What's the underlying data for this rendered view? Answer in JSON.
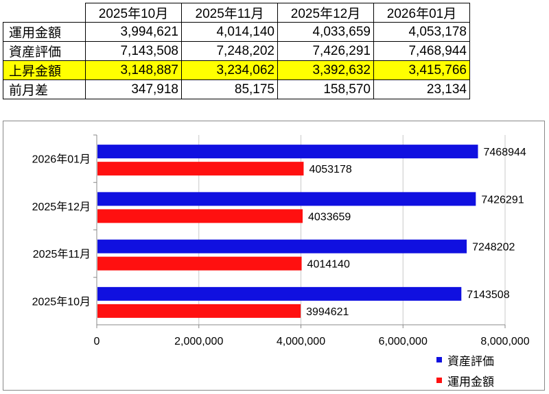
{
  "table": {
    "headers": [
      "2025年10月",
      "2025年11月",
      "2025年12月",
      "2026年01月"
    ],
    "rows": [
      {
        "label": "運用金額",
        "values": [
          "3,994,621",
          "4,014,140",
          "4,033,659",
          "4,053,178"
        ],
        "highlight": false
      },
      {
        "label": "資産評価",
        "values": [
          "7,143,508",
          "7,248,202",
          "7,426,291",
          "7,468,944"
        ],
        "highlight": false
      },
      {
        "label": "上昇金額",
        "values": [
          "3,148,887",
          "3,234,062",
          "3,392,632",
          "3,415,766"
        ],
        "highlight": true
      },
      {
        "label": "前月差",
        "values": [
          "347,918",
          "85,175",
          "158,570",
          "23,134"
        ],
        "highlight": false
      }
    ],
    "highlight_color": "#ffff00"
  },
  "chart_data": {
    "type": "bar",
    "orientation": "horizontal",
    "categories": [
      "2025年10月",
      "2025年11月",
      "2025年12月",
      "2026年01月"
    ],
    "series": [
      {
        "name": "資産評価",
        "color": "#1010e0",
        "values": [
          7143508,
          7248202,
          7426291,
          7468944
        ]
      },
      {
        "name": "運用金額",
        "color": "#ff1010",
        "values": [
          3994621,
          4014140,
          4033659,
          4053178
        ]
      }
    ],
    "xlim": [
      0,
      8000000
    ],
    "xticks": [
      0,
      2000000,
      4000000,
      6000000,
      8000000
    ],
    "xtick_labels": [
      "0",
      "2,000,000",
      "4,000,000",
      "6,000,000",
      "8,000,000"
    ],
    "grid": true,
    "legend_position": "bottom-right",
    "title": "",
    "xlabel": "",
    "ylabel": ""
  },
  "legend": {
    "items": [
      {
        "name": "資産評価",
        "color": "#1010e0"
      },
      {
        "name": "運用金額",
        "color": "#ff1010"
      }
    ]
  }
}
